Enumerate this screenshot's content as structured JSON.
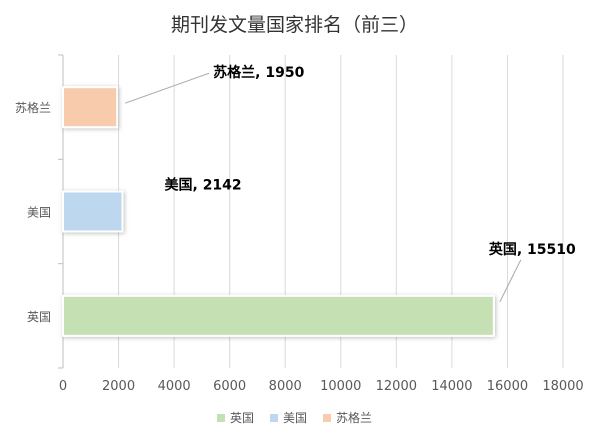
{
  "chart_data": {
    "type": "bar",
    "orientation": "horizontal",
    "title": "期刊发文量国家排名（前三）",
    "categories": [
      "英国",
      "美国",
      "苏格兰"
    ],
    "values": [
      15510,
      2142,
      1950
    ],
    "colors": [
      "#c5e0b3",
      "#bdd7ee",
      "#f8cbad"
    ],
    "xlim": [
      0,
      18000
    ],
    "xticks": [
      0,
      2000,
      4000,
      6000,
      8000,
      10000,
      12000,
      14000,
      16000,
      18000
    ],
    "grid": true,
    "data_labels": [
      "英国, 15510",
      "美国, 2142",
      "苏格兰, 1950"
    ],
    "legend": {
      "position": "bottom",
      "entries": [
        "英国",
        "美国",
        "苏格兰"
      ]
    }
  }
}
